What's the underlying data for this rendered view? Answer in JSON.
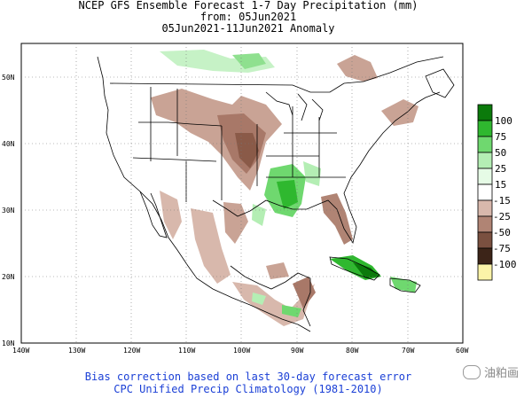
{
  "title": {
    "line1": "NCEP GFS Ensemble Forecast 1-7 Day Precipitation (mm)",
    "line2": "from: 05Jun2021",
    "line3": "05Jun2021-11Jun2021 Anomaly"
  },
  "map": {
    "lat_labels": [
      "50N",
      "40N",
      "30N",
      "20N",
      "10N"
    ],
    "lon_labels": [
      "140W",
      "130W",
      "120W",
      "110W",
      "100W",
      "90W",
      "80W",
      "70W",
      "60W"
    ]
  },
  "legend": {
    "items": [
      {
        "value": "100",
        "color": "#0b7a0b"
      },
      {
        "value": "75",
        "color": "#2fb82f"
      },
      {
        "value": "50",
        "color": "#6fd86f"
      },
      {
        "value": "25",
        "color": "#b4eeb4"
      },
      {
        "value": "15",
        "color": "#e6fbe6"
      },
      {
        "value": "-15",
        "color": "#ffffff"
      },
      {
        "value": "-25",
        "color": "#d8b8ac"
      },
      {
        "value": "-50",
        "color": "#b08474"
      },
      {
        "value": "-75",
        "color": "#7a5040"
      },
      {
        "value": "-100",
        "color": "#3c2418"
      }
    ],
    "below_color": "#fbf3a8"
  },
  "footer": {
    "line1": "Bias correction based on last 30-day forecast error",
    "line2": "CPC Unified Precip Climatology (1981-2010)"
  },
  "watermark": {
    "text": "油粕画"
  }
}
